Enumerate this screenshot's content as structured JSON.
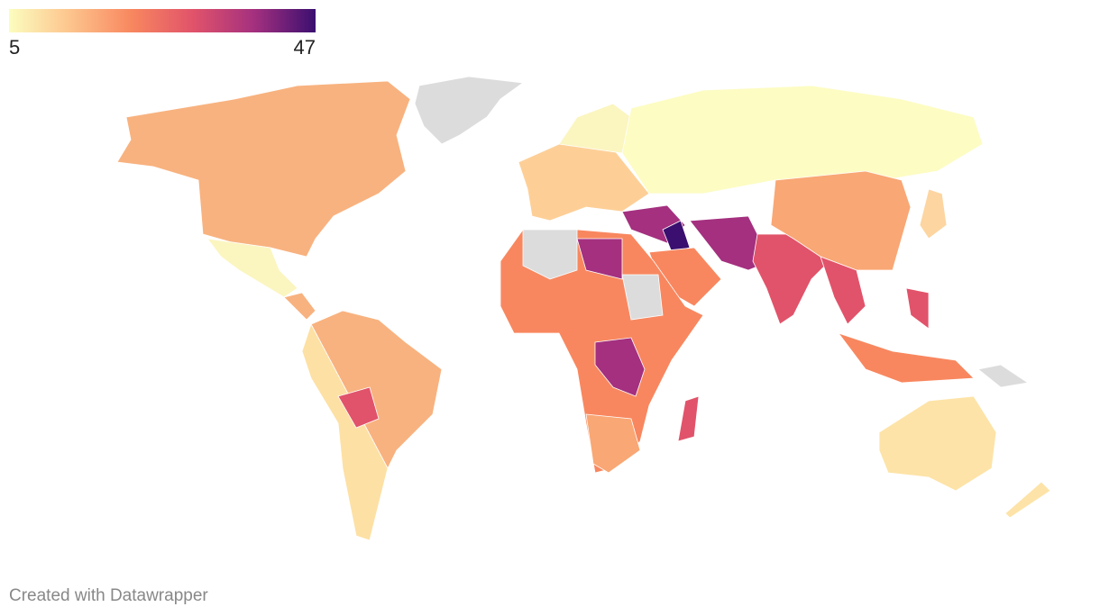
{
  "legend": {
    "min": 5,
    "max": 47,
    "colors": [
      "#fcfdbf",
      "#fdc48d",
      "#f8875f",
      "#e1536a",
      "#a4307f",
      "#3b0f70"
    ]
  },
  "credit": "Created with Datawrapper"
}
